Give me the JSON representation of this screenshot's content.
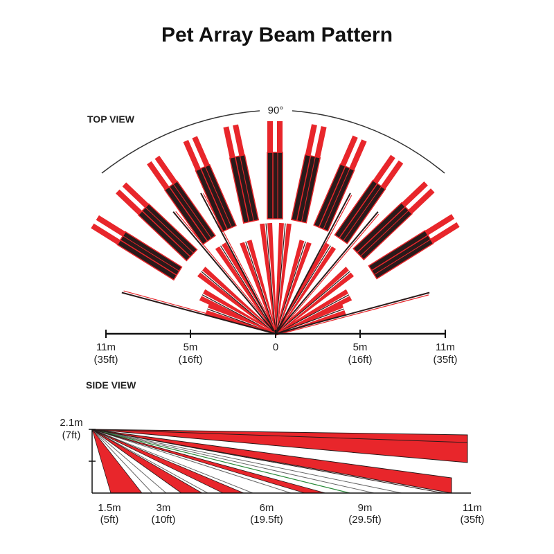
{
  "title": "Pet Array Beam Pattern",
  "top_view": {
    "label": "TOP VIEW",
    "angle": "90°",
    "scale": [
      {
        "top": "11m",
        "bottom": "(35ft)"
      },
      {
        "top": "5m",
        "bottom": "(16ft)"
      },
      {
        "top": "0"
      },
      {
        "top": "5m",
        "bottom": "(16ft)"
      },
      {
        "top": "11m",
        "bottom": "(35ft)"
      }
    ]
  },
  "side_view": {
    "label": "SIDE VIEW",
    "height": {
      "top": "2.1m",
      "bottom": "(7ft)"
    },
    "scale": [
      {
        "top": "1.5m",
        "bottom": "(5ft)"
      },
      {
        "top": "3m",
        "bottom": "(10ft)"
      },
      {
        "top": "6m",
        "bottom": "(19.5ft)"
      },
      {
        "top": "9m",
        "bottom": "(29.5ft)"
      },
      {
        "top": "11m",
        "bottom": "(35ft)"
      }
    ]
  }
}
